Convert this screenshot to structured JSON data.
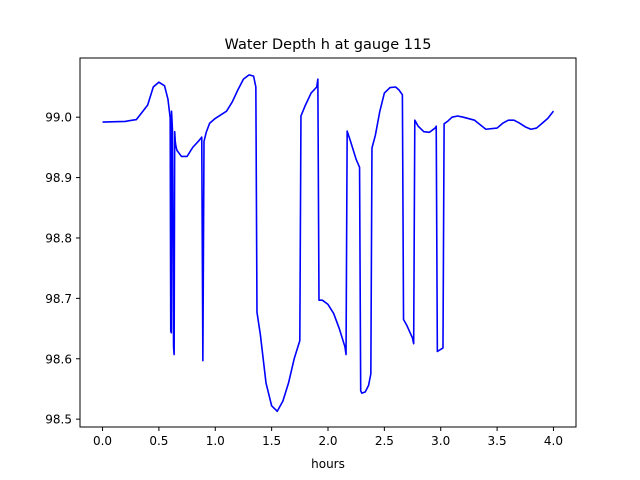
{
  "chart_data": {
    "type": "line",
    "title": "Water Depth h at gauge 115",
    "xlabel": "hours",
    "ylabel": "",
    "xlim": [
      -0.2,
      4.2
    ],
    "ylim": [
      98.487,
      99.098
    ],
    "xticks": [
      0.0,
      0.5,
      1.0,
      1.5,
      2.0,
      2.5,
      3.0,
      3.5,
      4.0
    ],
    "xtick_labels": [
      "0.0",
      "0.5",
      "1.0",
      "1.5",
      "2.0",
      "2.5",
      "3.0",
      "3.5",
      "4.0"
    ],
    "yticks": [
      98.5,
      98.6,
      98.7,
      98.8,
      98.9,
      99.0
    ],
    "ytick_labels": [
      "98.5",
      "98.6",
      "98.7",
      "98.8",
      "98.9",
      "99.0"
    ],
    "grid": false,
    "series": [
      {
        "color": "#0000ff",
        "x": [
          0.0,
          0.2,
          0.3,
          0.4,
          0.45,
          0.5,
          0.55,
          0.58,
          0.6,
          0.605,
          0.61,
          0.612,
          0.62,
          0.63,
          0.635,
          0.64,
          0.645,
          0.65,
          0.66,
          0.7,
          0.75,
          0.8,
          0.85,
          0.88,
          0.89,
          0.9,
          0.92,
          0.95,
          1.0,
          1.1,
          1.15,
          1.2,
          1.25,
          1.3,
          1.34,
          1.36,
          1.37,
          1.4,
          1.45,
          1.5,
          1.55,
          1.6,
          1.65,
          1.7,
          1.75,
          1.76,
          1.8,
          1.85,
          1.9,
          1.91,
          1.92,
          1.95,
          2.0,
          2.05,
          2.1,
          2.15,
          2.16,
          2.17,
          2.2,
          2.25,
          2.28,
          2.29,
          2.3,
          2.33,
          2.36,
          2.38,
          2.39,
          2.42,
          2.46,
          2.5,
          2.55,
          2.6,
          2.63,
          2.66,
          2.67,
          2.7,
          2.75,
          2.76,
          2.77,
          2.8,
          2.85,
          2.9,
          2.95,
          2.96,
          2.97,
          3.02,
          3.03,
          3.06,
          3.1,
          3.15,
          3.2,
          3.3,
          3.4,
          3.5,
          3.55,
          3.6,
          3.65,
          3.7,
          3.75,
          3.8,
          3.85,
          3.9,
          3.95,
          4.0
        ],
        "y": [
          98.992,
          98.993,
          98.996,
          99.02,
          99.05,
          99.058,
          99.052,
          99.03,
          98.999,
          98.646,
          98.643,
          99.01,
          98.98,
          98.62,
          98.607,
          98.976,
          98.96,
          98.953,
          98.945,
          98.935,
          98.935,
          98.95,
          98.96,
          98.967,
          98.597,
          98.96,
          98.975,
          98.99,
          98.998,
          99.01,
          99.025,
          99.045,
          99.063,
          99.07,
          99.068,
          99.05,
          98.677,
          98.64,
          98.56,
          98.522,
          98.513,
          98.53,
          98.56,
          98.6,
          98.63,
          99.002,
          99.02,
          99.04,
          99.05,
          99.063,
          98.697,
          98.697,
          98.69,
          98.675,
          98.65,
          98.62,
          98.607,
          98.977,
          98.96,
          98.93,
          98.917,
          98.547,
          98.543,
          98.545,
          98.556,
          98.575,
          98.949,
          98.97,
          99.01,
          99.04,
          99.049,
          99.05,
          99.045,
          99.037,
          98.665,
          98.655,
          98.634,
          98.625,
          98.995,
          98.985,
          98.976,
          98.975,
          98.982,
          98.985,
          98.612,
          98.618,
          98.989,
          98.993,
          99.0,
          99.002,
          99.0,
          98.995,
          98.98,
          98.982,
          98.99,
          98.995,
          98.995,
          98.99,
          98.984,
          98.98,
          98.982,
          98.99,
          98.998,
          99.01
        ]
      }
    ]
  }
}
